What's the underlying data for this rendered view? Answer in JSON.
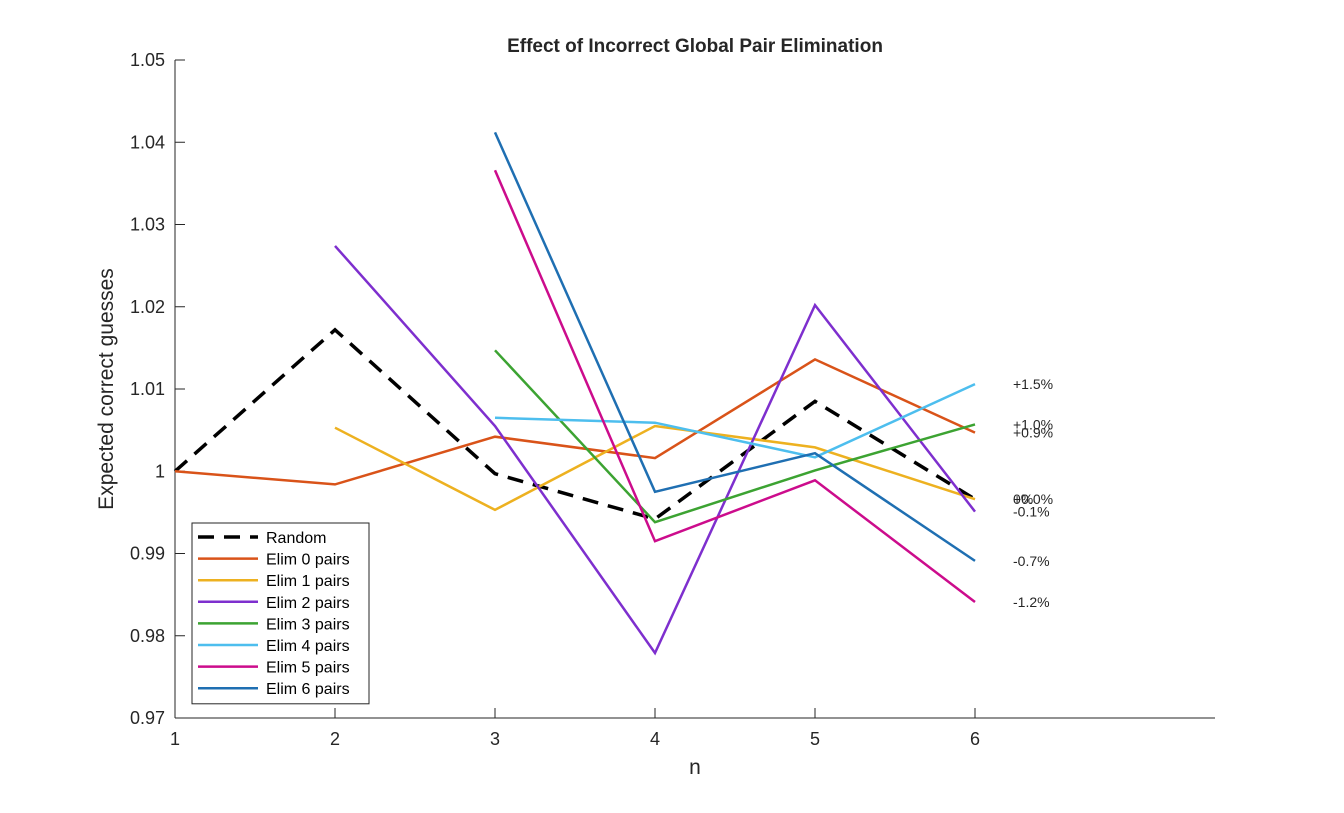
{
  "chart_data": {
    "type": "line",
    "title": "Effect of Incorrect Global Pair Elimination",
    "xlabel": "n",
    "ylabel": "Expected correct guesses",
    "xlim": [
      1,
      7.5
    ],
    "ylim": [
      0.97,
      1.05
    ],
    "xticks": [
      1,
      2,
      3,
      4,
      5,
      6
    ],
    "yticks": [
      0.97,
      0.98,
      0.99,
      1,
      1.01,
      1.02,
      1.03,
      1.04,
      1.05
    ],
    "ytick_labels": [
      "0.97",
      "0.98",
      "0.99",
      "1",
      "1.01",
      "1.02",
      "1.03",
      "1.04",
      "1.05"
    ],
    "grid": false,
    "legend_position": "bottom-left",
    "series": [
      {
        "name": "Random",
        "color": "#000000",
        "dashed": true,
        "x": [
          1,
          2,
          3,
          4,
          5,
          6
        ],
        "y": [
          1.0,
          1.0172,
          0.9997,
          0.9942,
          1.0085,
          0.9966
        ],
        "end_label": "0%"
      },
      {
        "name": "Elim 0 pairs",
        "color": "#D95319",
        "dashed": false,
        "x": [
          1,
          2,
          3,
          4,
          5,
          6
        ],
        "y": [
          1.0,
          0.9984,
          1.0042,
          1.0016,
          1.0136,
          1.0047
        ],
        "end_label": "+0.9%"
      },
      {
        "name": "Elim 1 pairs",
        "color": "#EDB120",
        "dashed": false,
        "x": [
          2,
          3,
          4,
          5,
          6
        ],
        "y": [
          1.0053,
          0.9953,
          1.0055,
          1.0029,
          0.9966
        ],
        "end_label": "+0.0%"
      },
      {
        "name": "Elim 2 pairs",
        "color": "#7E2FCE",
        "dashed": false,
        "x": [
          2,
          3,
          4,
          5,
          6
        ],
        "y": [
          1.0274,
          1.0055,
          0.9779,
          1.0202,
          0.9951
        ],
        "end_label": "-0.1%"
      },
      {
        "name": "Elim 3 pairs",
        "color": "#3CA332",
        "dashed": false,
        "x": [
          3,
          4,
          5,
          6
        ],
        "y": [
          1.0147,
          0.9938,
          1.0001,
          1.0057
        ],
        "end_label": "+1.0%"
      },
      {
        "name": "Elim 4 pairs",
        "color": "#4DBEEE",
        "dashed": false,
        "x": [
          3,
          4,
          5,
          6
        ],
        "y": [
          1.0065,
          1.0059,
          1.0017,
          1.0106
        ],
        "end_label": "+1.5%"
      },
      {
        "name": "Elim 5 pairs",
        "color": "#CC0C8C",
        "dashed": false,
        "x": [
          3,
          4,
          5,
          6
        ],
        "y": [
          1.0366,
          0.9915,
          0.9989,
          0.9841
        ],
        "end_label": "-1.2%"
      },
      {
        "name": "Elim 6 pairs",
        "color": "#1F6FB2",
        "dashed": false,
        "x": [
          3,
          4,
          5,
          6
        ],
        "y": [
          1.0412,
          0.9975,
          1.0022,
          0.9891
        ],
        "end_label": "-0.7%"
      }
    ]
  }
}
